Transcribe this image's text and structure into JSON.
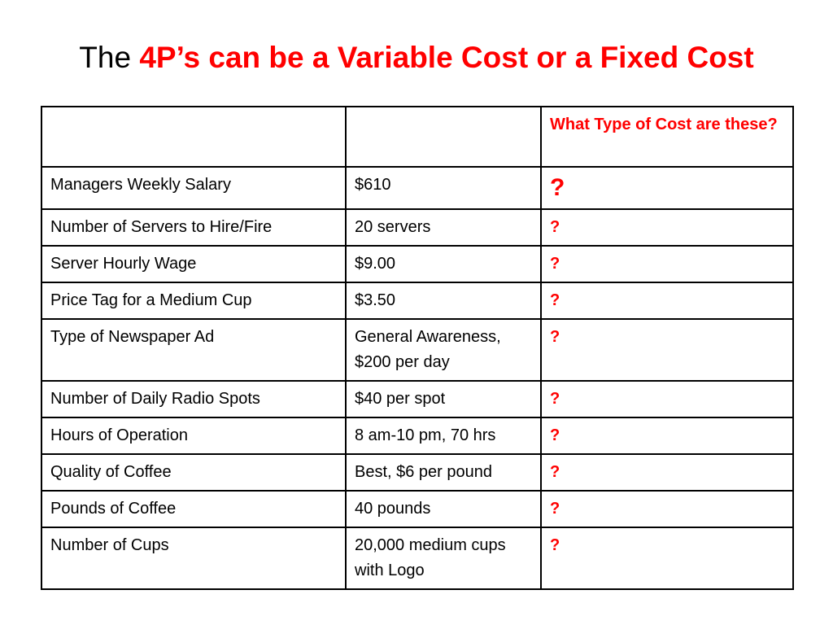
{
  "title": {
    "prefix": "The ",
    "highlight": "4P’s can be a Variable Cost or a Fixed Cost"
  },
  "colors": {
    "accent": "#ff0000",
    "text": "#000000",
    "border": "#000000"
  },
  "table": {
    "header": {
      "col1": "",
      "col2": "",
      "col3": "What Type of Cost are these?"
    },
    "rows": [
      {
        "item": "Managers Weekly Salary",
        "value": "$610",
        "answer": "?"
      },
      {
        "item": "Number of Servers to Hire/Fire",
        "value": "20 servers",
        "answer": "?"
      },
      {
        "item": "Server Hourly Wage",
        "value": "$9.00",
        "answer": "?"
      },
      {
        "item": "Price Tag for a Medium Cup",
        "value": "$3.50",
        "answer": "?"
      },
      {
        "item": "Type of Newspaper Ad",
        "value": "General Awareness, $200 per day",
        "answer": "?"
      },
      {
        "item": "Number of Daily Radio Spots",
        "value": "$40 per spot",
        "answer": "?"
      },
      {
        "item": "Hours of Operation",
        "value": "8 am-10 pm, 70 hrs",
        "answer": "?"
      },
      {
        "item": "Quality of Coffee",
        "value": "Best, $6 per pound",
        "answer": "?"
      },
      {
        "item": "Pounds of Coffee",
        "value": "40 pounds",
        "answer": "?"
      },
      {
        "item": "Number of Cups",
        "value": "20,000 medium cups with Logo",
        "answer": "?"
      }
    ]
  }
}
